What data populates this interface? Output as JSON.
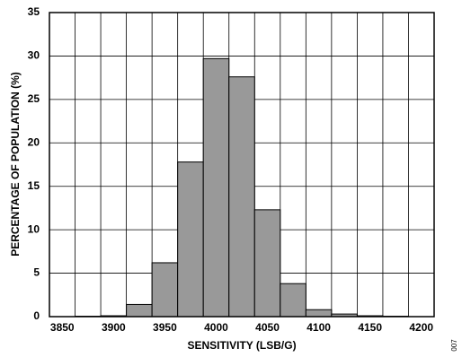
{
  "chart_data": {
    "type": "histogram",
    "xlabel": "SENSITIVITY (LSB/G)",
    "ylabel": "PERCENTAGE OF POPULATION (%)",
    "figure_id": "007",
    "bins": [
      3837.5,
      3862.5,
      3887.5,
      3912.5,
      3937.5,
      3962.5,
      3987.5,
      4012.5,
      4037.5,
      4062.5,
      4087.5,
      4112.5,
      4137.5,
      4162.5,
      4187.5,
      4212.5
    ],
    "values": [
      0,
      0.05,
      0.1,
      1.4,
      6.2,
      17.8,
      29.7,
      27.6,
      12.3,
      3.8,
      0.8,
      0.3,
      0.1,
      0.05,
      0
    ],
    "color": "#999999",
    "xlim": [
      3837.5,
      4212.5
    ],
    "xticks": [
      3850,
      3900,
      3950,
      4000,
      4050,
      4100,
      4150,
      4200
    ],
    "ylim": [
      0,
      35
    ],
    "yticks": [
      0,
      5,
      10,
      15,
      20,
      25,
      30,
      35
    ],
    "grid": true
  }
}
